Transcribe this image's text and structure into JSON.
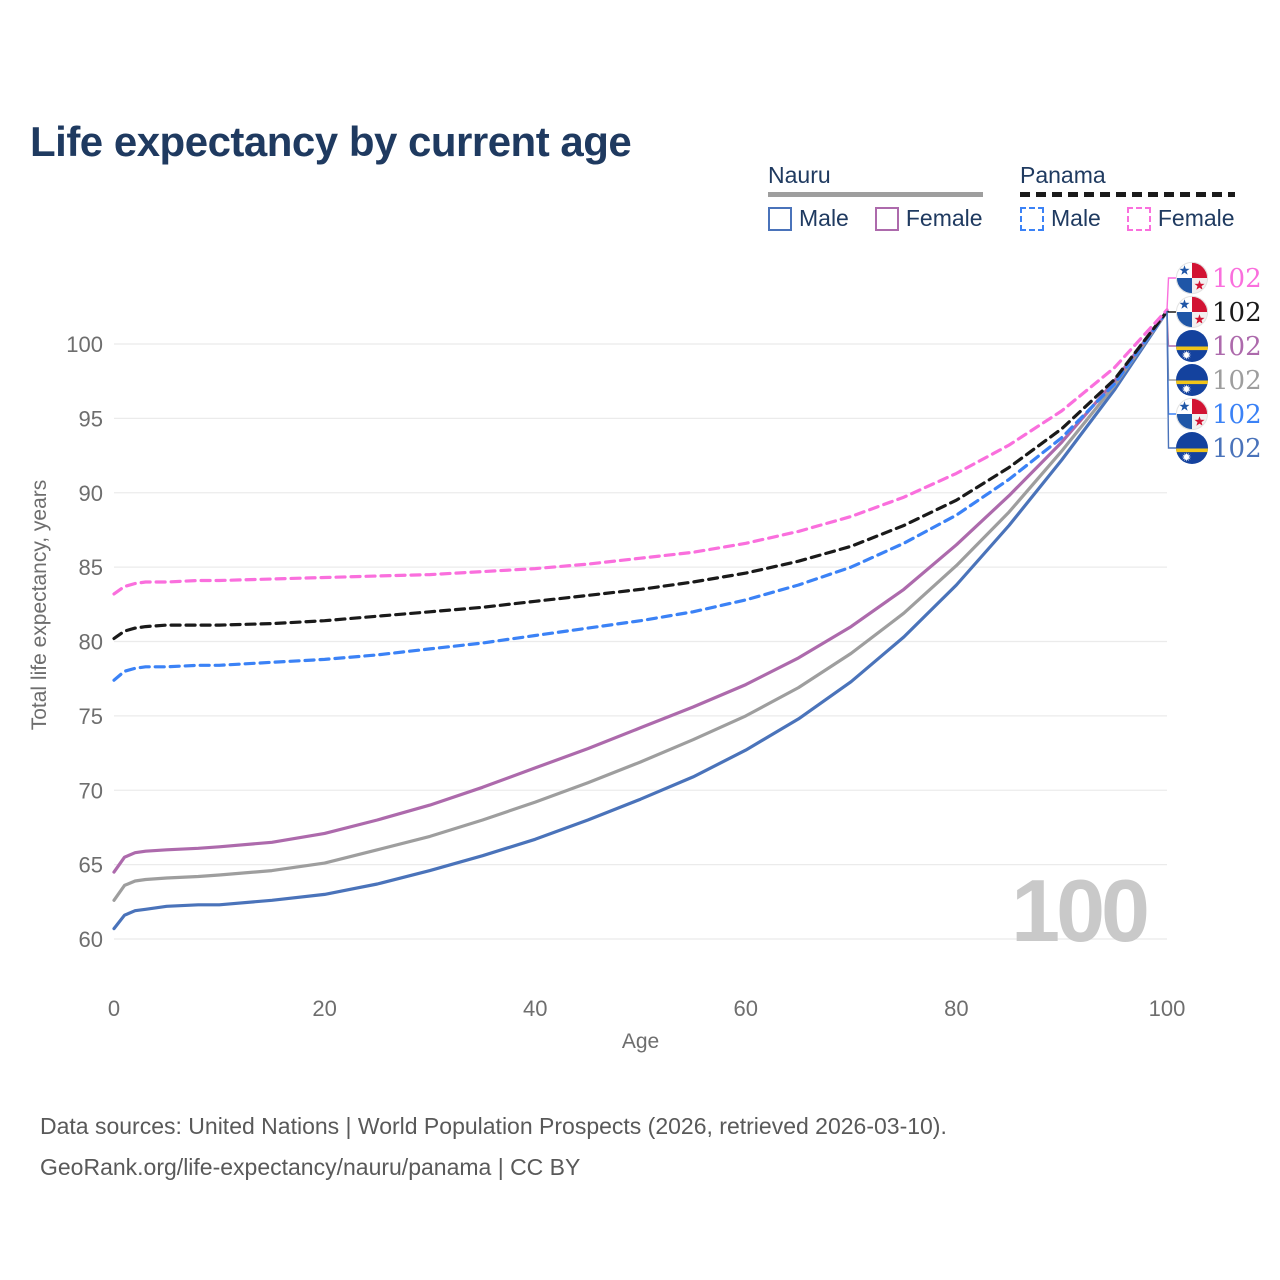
{
  "page": {
    "title": "Life expectancy by current age",
    "watermark_age": "100",
    "footer_line1": "Data sources: United Nations | World Population Prospects (2026, retrieved 2026-03-10).",
    "footer_line2": "GeoRank.org/life-expectancy/nauru/panama | CC BY"
  },
  "legend": {
    "groups": [
      {
        "country": "Nauru",
        "line_style": "solid",
        "line_color": "#9e9e9e",
        "items": [
          {
            "label": "Male",
            "color": "#4a73ba",
            "style": "solid"
          },
          {
            "label": "Female",
            "color": "#ad6aac",
            "style": "solid"
          }
        ]
      },
      {
        "country": "Panama",
        "line_style": "dashed",
        "line_color": "#1a1a1a",
        "items": [
          {
            "label": "Male",
            "color": "#3b82f6",
            "style": "dashed"
          },
          {
            "label": "Female",
            "color": "#fa6fdd",
            "style": "dashed"
          }
        ]
      }
    ]
  },
  "chart_data": {
    "type": "line",
    "title": "Life expectancy by current age",
    "xlabel": "Age",
    "ylabel": "Total life expectancy, years",
    "xlim": [
      0,
      100
    ],
    "ylim": [
      60,
      102.5
    ],
    "xticks": [
      0,
      20,
      40,
      60,
      80,
      100
    ],
    "yticks": [
      60,
      65,
      70,
      75,
      80,
      85,
      90,
      95,
      100
    ],
    "grid": "horizontal",
    "legend_position": "top-right",
    "x_ages": [
      0,
      1,
      2,
      3,
      5,
      8,
      10,
      15,
      20,
      25,
      30,
      35,
      40,
      45,
      50,
      55,
      60,
      65,
      70,
      75,
      80,
      85,
      90,
      95,
      100
    ],
    "series": [
      {
        "name": "Panama Female",
        "country": "Panama",
        "sex": "female",
        "flag": "panama",
        "dash": true,
        "color": "#fa6fdd",
        "end_label": "102",
        "values": [
          83.2,
          83.7,
          83.9,
          84.0,
          84.0,
          84.1,
          84.1,
          84.2,
          84.3,
          84.4,
          84.5,
          84.7,
          84.9,
          85.2,
          85.6,
          86.0,
          86.6,
          87.4,
          88.4,
          89.7,
          91.3,
          93.2,
          95.5,
          98.4,
          102.3
        ]
      },
      {
        "name": "Panama Both sexes",
        "country": "Panama",
        "sex": "total",
        "flag": "panama",
        "dash": true,
        "color": "#1a1a1a",
        "end_label": "102",
        "values": [
          80.2,
          80.7,
          80.9,
          81.0,
          81.1,
          81.1,
          81.1,
          81.2,
          81.4,
          81.7,
          82.0,
          82.3,
          82.7,
          83.1,
          83.5,
          84.0,
          84.6,
          85.4,
          86.4,
          87.8,
          89.5,
          91.7,
          94.3,
          97.6,
          102.2
        ]
      },
      {
        "name": "Nauru Female",
        "country": "Nauru",
        "sex": "female",
        "flag": "nauru",
        "dash": false,
        "color": "#ad6aac",
        "end_label": "102",
        "values": [
          64.5,
          65.5,
          65.8,
          65.9,
          66.0,
          66.1,
          66.2,
          66.5,
          67.1,
          68.0,
          69.0,
          70.2,
          71.5,
          72.8,
          74.2,
          75.6,
          77.1,
          78.9,
          81.0,
          83.5,
          86.5,
          89.8,
          93.4,
          97.5,
          102.2
        ]
      },
      {
        "name": "Nauru Both sexes",
        "country": "Nauru",
        "sex": "total",
        "flag": "nauru",
        "dash": false,
        "color": "#9e9e9e",
        "end_label": "102",
        "values": [
          62.6,
          63.6,
          63.9,
          64.0,
          64.1,
          64.2,
          64.3,
          64.6,
          65.1,
          66.0,
          66.9,
          68.0,
          69.2,
          70.5,
          71.9,
          73.4,
          75.0,
          76.9,
          79.2,
          81.9,
          85.1,
          88.7,
          92.8,
          97.2,
          102.2
        ]
      },
      {
        "name": "Panama Male",
        "country": "Panama",
        "sex": "male",
        "flag": "panama",
        "dash": true,
        "color": "#3b82f6",
        "end_label": "102",
        "values": [
          77.4,
          78.0,
          78.2,
          78.3,
          78.3,
          78.4,
          78.4,
          78.6,
          78.8,
          79.1,
          79.5,
          79.9,
          80.4,
          80.9,
          81.4,
          82.0,
          82.8,
          83.8,
          85.0,
          86.6,
          88.5,
          90.9,
          93.7,
          97.3,
          102.2
        ]
      },
      {
        "name": "Nauru Male",
        "country": "Nauru",
        "sex": "male",
        "flag": "nauru",
        "dash": false,
        "color": "#4a73ba",
        "end_label": "102",
        "values": [
          60.7,
          61.6,
          61.9,
          62.0,
          62.2,
          62.3,
          62.3,
          62.6,
          63.0,
          63.7,
          64.6,
          65.6,
          66.7,
          68.0,
          69.4,
          70.9,
          72.7,
          74.8,
          77.3,
          80.3,
          83.8,
          87.8,
          92.2,
          96.9,
          102.2
        ]
      }
    ]
  }
}
